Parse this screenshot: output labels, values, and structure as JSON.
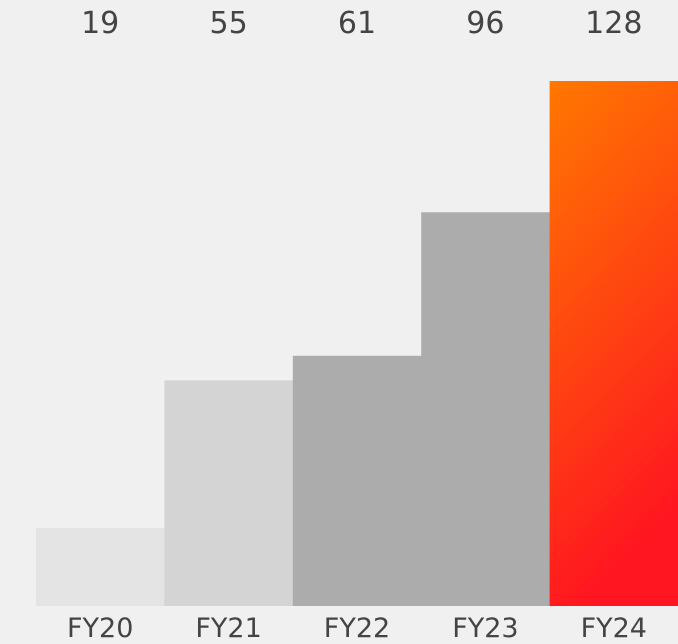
{
  "chart_data": {
    "type": "bar",
    "categories": [
      "FY20",
      "FY21",
      "FY22",
      "FY23",
      "FY24"
    ],
    "values": [
      19,
      55,
      61,
      96,
      128
    ],
    "title": "",
    "xlabel": "",
    "ylabel": "",
    "ylim": [
      0,
      128
    ],
    "grid": false,
    "value_labels_position": "top",
    "colors": [
      "#e4e4e4",
      "#d4d4d4",
      "#acacac",
      "#acacac",
      "gradient:#ff7a00-#ff1a1a"
    ]
  }
}
